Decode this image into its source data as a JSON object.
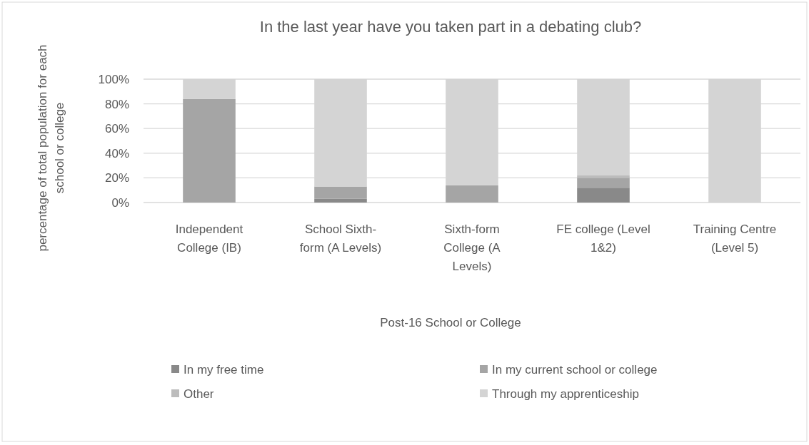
{
  "chart_data": {
    "type": "bar",
    "stacked": true,
    "title": "In the last year have you taken part in a debating club?",
    "xlabel": "Post-16 School or College",
    "ylabel": "percentage of total population for each\nschool or college",
    "categories": [
      "Independent\nCollege (IB)",
      "School Sixth-\nform (A Levels)",
      "Sixth-form\nCollege (A\nLevels)",
      "FE college (Level\n1&2)",
      "Training Centre\n(Level 5)"
    ],
    "series": [
      {
        "name": "In my free time",
        "color": "#898989",
        "values": [
          0,
          3,
          0,
          12,
          0
        ]
      },
      {
        "name": "In my current school or college",
        "color": "#a5a5a5",
        "values": [
          84,
          10,
          14,
          8,
          0
        ]
      },
      {
        "name": "Other",
        "color": "#bcbcbc",
        "values": [
          0,
          0,
          0,
          2,
          0
        ]
      },
      {
        "name": "Through my apprenticeship",
        "color": "#d4d4d4",
        "values": [
          16,
          87,
          86,
          78,
          100
        ]
      }
    ],
    "ylim": [
      0,
      100
    ],
    "yticks": [
      {
        "value": 0,
        "label": "0%"
      },
      {
        "value": 20,
        "label": "20%"
      },
      {
        "value": 40,
        "label": "40%"
      },
      {
        "value": 60,
        "label": "60%"
      },
      {
        "value": 80,
        "label": "80%"
      },
      {
        "value": 100,
        "label": "100%"
      }
    ],
    "grid": "y",
    "legend": "bottom"
  }
}
